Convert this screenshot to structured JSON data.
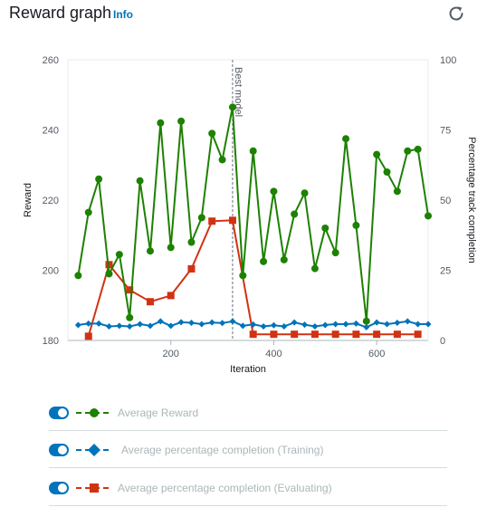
{
  "header": {
    "title": "Reward graph",
    "info": "Info",
    "refresh_icon": "refresh-icon"
  },
  "chart_data": {
    "type": "line",
    "xlabel": "Iteration",
    "ylabel": "Reward",
    "y2label": "Percentage track completion",
    "xlim": [
      0,
      700
    ],
    "ylim": [
      180,
      260
    ],
    "y2lim": [
      0,
      100
    ],
    "xticks": [
      200,
      400,
      600
    ],
    "yticks": [
      180,
      200,
      220,
      240,
      260
    ],
    "y2ticks": [
      0,
      25,
      50,
      75,
      100
    ],
    "grid": false,
    "legend_placement": "bottom",
    "annotation": {
      "label": "Best model",
      "x": 320
    },
    "series": [
      {
        "name": "Average Reward",
        "axis": "left",
        "color": "#1d8102",
        "marker": "circle",
        "x": [
          20,
          40,
          60,
          80,
          100,
          120,
          140,
          160,
          180,
          200,
          220,
          240,
          260,
          280,
          300,
          320,
          340,
          360,
          380,
          400,
          420,
          440,
          460,
          480,
          500,
          520,
          540,
          560,
          580,
          600,
          620,
          640,
          660,
          680,
          700
        ],
        "values": [
          198.5,
          216.5,
          226,
          199,
          204.5,
          186.5,
          225.5,
          205.5,
          242,
          206.5,
          242.5,
          208,
          215,
          239,
          231.5,
          246.5,
          198.5,
          234,
          202.5,
          222.5,
          203,
          216,
          222,
          200.5,
          212,
          205,
          237.5,
          212.8,
          185.5,
          233,
          228,
          222.5,
          234,
          234.5,
          215.5
        ]
      },
      {
        "name": "Average percentage completion (Training)",
        "axis": "right",
        "color": "#0073bb",
        "marker": "diamond",
        "x": [
          20,
          40,
          60,
          80,
          100,
          120,
          140,
          160,
          180,
          200,
          220,
          240,
          260,
          280,
          300,
          320,
          340,
          360,
          380,
          400,
          420,
          440,
          460,
          480,
          500,
          520,
          540,
          560,
          580,
          600,
          620,
          640,
          660,
          680,
          700
        ],
        "values": [
          5.5,
          6,
          6,
          5,
          5.2,
          5,
          5.8,
          5.2,
          6.8,
          5.2,
          6.5,
          6.3,
          5.8,
          6.4,
          6.2,
          6.8,
          5.2,
          5.7,
          5,
          5.4,
          5,
          6.4,
          5.6,
          5,
          5.5,
          5.8,
          5.8,
          6,
          4.7,
          6.4,
          5.8,
          6.3,
          6.8,
          5.8,
          5.8
        ]
      },
      {
        "name": "Average percentage completion (Evaluating)",
        "axis": "right",
        "color": "#d13212",
        "marker": "square",
        "x": [
          40,
          80,
          120,
          160,
          200,
          240,
          280,
          320,
          360,
          400,
          440,
          480,
          520,
          560,
          600,
          640,
          680
        ],
        "values": [
          1.5,
          27,
          18,
          13.8,
          16,
          25.5,
          42.5,
          42.8,
          2.2,
          2.2,
          2.2,
          2.2,
          2.2,
          2.2,
          2.2,
          2.2,
          2.2
        ]
      }
    ]
  },
  "legend": [
    {
      "label": "Average Reward"
    },
    {
      "label": "Average percentage completion (Training)"
    },
    {
      "label": "Average percentage completion (Evaluating)"
    }
  ]
}
